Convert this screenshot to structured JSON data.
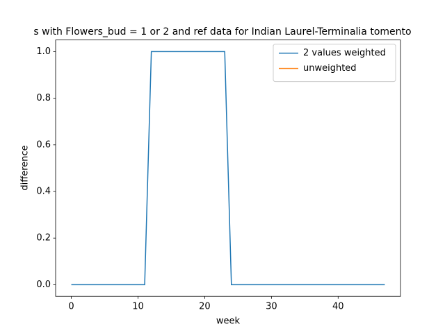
{
  "chart_data": {
    "type": "line",
    "title": "s with Flowers_bud = 1 or 2 and ref data for Indian Laurel-Terminalia tomento",
    "x_label": "week",
    "y_label": "difference",
    "x": [
      0,
      1,
      2,
      3,
      4,
      5,
      6,
      7,
      8,
      9,
      10,
      11,
      12,
      13,
      14,
      15,
      16,
      17,
      18,
      19,
      20,
      21,
      22,
      23,
      24,
      25,
      26,
      27,
      28,
      29,
      30,
      31,
      32,
      33,
      34,
      35,
      36,
      37,
      38,
      39,
      40,
      41,
      42,
      43,
      44,
      45,
      46,
      47
    ],
    "series": [
      {
        "name": "2 values weighted",
        "color": "#1f77b4",
        "values": [
          0,
          0,
          0,
          0,
          0,
          0,
          0,
          0,
          0,
          0,
          0,
          0,
          1,
          1,
          1,
          1,
          1,
          1,
          1,
          1,
          1,
          1,
          1,
          1,
          0,
          0,
          0,
          0,
          0,
          0,
          0,
          0,
          0,
          0,
          0,
          0,
          0,
          0,
          0,
          0,
          0,
          0,
          0,
          0,
          0,
          0,
          0,
          0
        ]
      },
      {
        "name": "unweighted",
        "color": "#ff7f0e",
        "values": [
          null,
          null,
          null,
          null,
          null,
          null,
          null,
          null,
          null,
          null,
          null,
          null,
          null,
          null,
          null,
          null,
          null,
          null,
          null,
          null,
          null,
          null,
          null,
          null,
          null,
          null,
          null,
          null,
          null,
          null,
          null,
          null,
          null,
          null,
          null,
          null,
          null,
          null,
          null,
          null,
          null,
          null,
          null,
          null,
          null,
          null,
          null,
          null
        ]
      }
    ],
    "xlim": [
      -2.35,
      49.35
    ],
    "ylim": [
      -0.05,
      1.05
    ],
    "xticks": [
      0,
      10,
      20,
      30,
      40
    ],
    "yticks": [
      {
        "value": 0,
        "label": "0.0"
      },
      {
        "value": 0.2,
        "label": "0.2"
      },
      {
        "value": 0.4,
        "label": "0.4"
      },
      {
        "value": 0.6,
        "label": "0.6"
      },
      {
        "value": 0.8,
        "label": "0.8"
      },
      {
        "value": 1,
        "label": "1.0"
      }
    ],
    "legend": "upper right"
  }
}
